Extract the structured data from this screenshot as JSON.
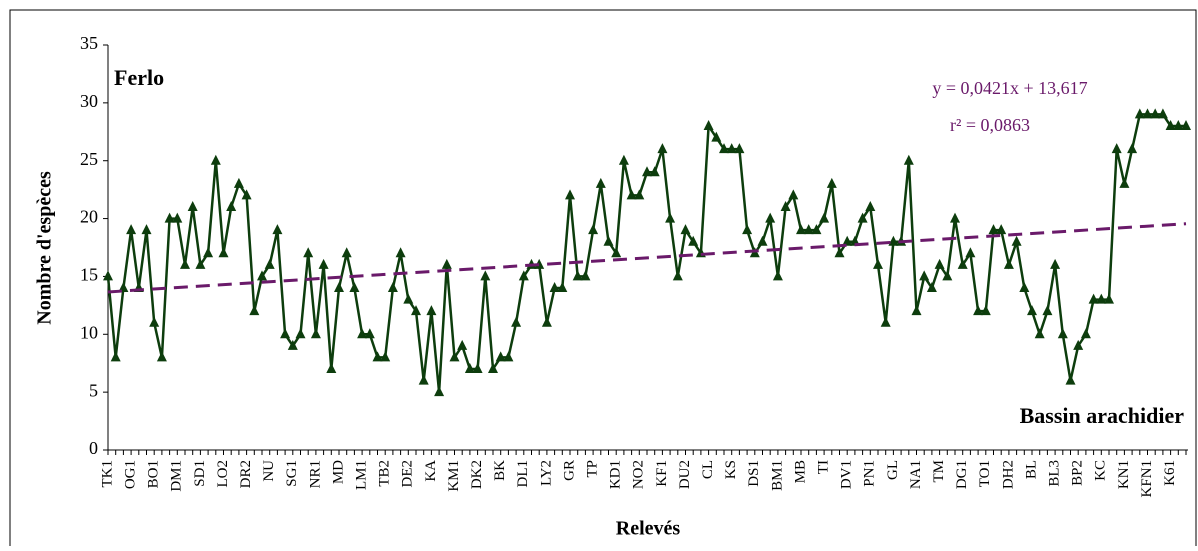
{
  "chart_data": {
    "type": "line",
    "x_label": "Relevés",
    "y_label": "Nombre d'espèces",
    "annotations": [
      "Ferlo",
      "Bassin arachidier"
    ],
    "categories": [
      "TK1",
      null,
      null,
      "OG1",
      null,
      null,
      "BO1",
      null,
      null,
      "DM1",
      null,
      null,
      "SD1",
      null,
      null,
      "LO2",
      null,
      null,
      "DR2",
      null,
      null,
      "NU",
      null,
      null,
      "SG1",
      null,
      null,
      "NR1",
      null,
      null,
      "MD",
      null,
      null,
      "LM1",
      null,
      null,
      "TB2",
      null,
      null,
      "DE2",
      null,
      null,
      "KA",
      null,
      null,
      "KM1",
      null,
      null,
      "DK2",
      null,
      null,
      "BK",
      null,
      null,
      "DL1",
      null,
      null,
      "LY2",
      null,
      null,
      "GR",
      null,
      null,
      "TP",
      null,
      null,
      "KD1",
      null,
      null,
      "NO2",
      null,
      null,
      "KF1",
      null,
      null,
      "DU2",
      null,
      null,
      "CL",
      null,
      null,
      "KS",
      null,
      null,
      "DS1",
      null,
      null,
      "BM1",
      null,
      null,
      "MB",
      null,
      null,
      "TI",
      null,
      null,
      "DV1",
      null,
      null,
      "PN1",
      null,
      null,
      "GL",
      null,
      null,
      "NA1",
      null,
      null,
      "TM",
      null,
      null,
      "DG1",
      null,
      null,
      "TO1",
      null,
      null,
      "DH2",
      null,
      null,
      "BL",
      null,
      null,
      "BL3",
      null,
      null,
      "BP2",
      null,
      null,
      "KC",
      null,
      null,
      "KN1",
      null,
      null,
      "KFN1",
      null,
      null,
      "K61",
      null,
      null
    ],
    "values": [
      15,
      8,
      14,
      19,
      14,
      19,
      11,
      8,
      20,
      20,
      16,
      21,
      16,
      17,
      25,
      17,
      21,
      23,
      22,
      12,
      15,
      16,
      19,
      10,
      9,
      10,
      17,
      10,
      16,
      7,
      14,
      17,
      14,
      10,
      10,
      8,
      8,
      14,
      17,
      13,
      12,
      6,
      12,
      5,
      16,
      8,
      9,
      7,
      7,
      15,
      7,
      8,
      8,
      11,
      15,
      16,
      16,
      11,
      14,
      14,
      22,
      15,
      15,
      19,
      23,
      18,
      17,
      25,
      22,
      22,
      24,
      24,
      26,
      20,
      15,
      19,
      18,
      17,
      28,
      27,
      26,
      26,
      26,
      19,
      17,
      18,
      20,
      15,
      21,
      22,
      19,
      19,
      19,
      20,
      23,
      17,
      18,
      18,
      20,
      21,
      16,
      11,
      18,
      18,
      25,
      12,
      15,
      14,
      16,
      15,
      20,
      16,
      17,
      12,
      12,
      19,
      19,
      16,
      18,
      14,
      12,
      10,
      12,
      16,
      10,
      6,
      9,
      10,
      13,
      13,
      13,
      26,
      23,
      26,
      29,
      29,
      29,
      29,
      28,
      28,
      28
    ],
    "color": "#0d3d0d",
    "trendline": {
      "slope": 0.0421,
      "intercept": 13.617,
      "color": "#6a1a6a",
      "label": "y = 0,0421x + 13,617",
      "r2_label": "r² = 0,0863"
    },
    "ylim": [
      0,
      35
    ],
    "yticks": [
      0,
      5,
      10,
      15,
      20,
      25,
      30,
      35
    ],
    "grid": false
  }
}
